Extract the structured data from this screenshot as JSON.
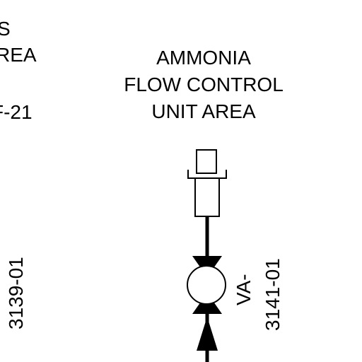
{
  "left_area": {
    "line1": "S",
    "line2": "REA",
    "line3": "F-21"
  },
  "right_area": {
    "line1": "AMMONIA",
    "line2": "FLOW CONTROL",
    "line3": "UNIT AREA"
  },
  "left_valve_tag": "3139-01",
  "right_valve_tag": {
    "line1": "VA-",
    "line2": "3141-01"
  },
  "colors": {
    "line": "#000000",
    "background": "#ffffff"
  }
}
